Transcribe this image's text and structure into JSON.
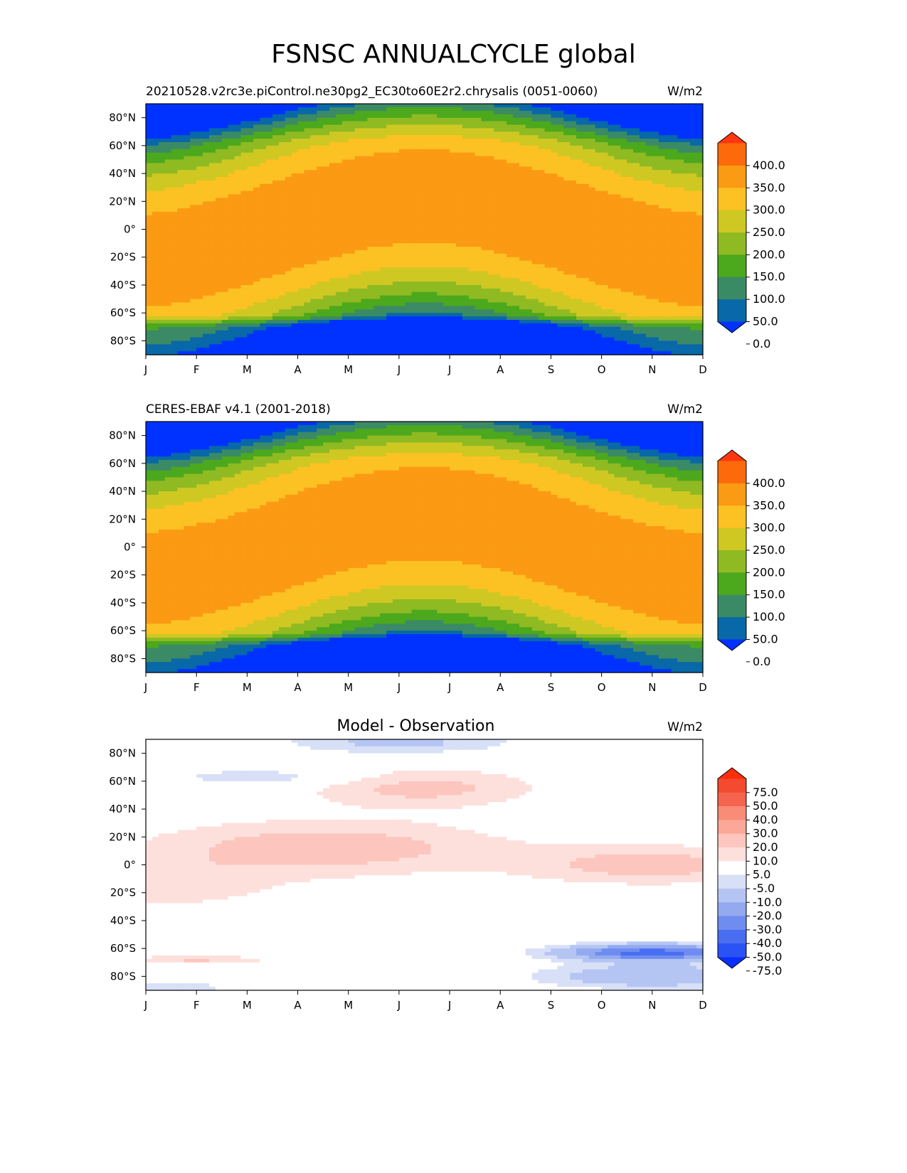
{
  "figure_title": "FSNSC ANNUALCYCLE global",
  "chart_data": [
    {
      "type": "heatmap",
      "panel": "test",
      "title_left": "20210528.v2rc3e.piControl.ne30pg2_EC30to60E2r2.chrysalis (0051-0060)",
      "title_center": "",
      "units": "W/m2",
      "x_tick_labels": [
        "J",
        "F",
        "M",
        "A",
        "M",
        "J",
        "J",
        "A",
        "S",
        "O",
        "N",
        "D"
      ],
      "y_tick_labels": [
        "80°N",
        "60°N",
        "40°N",
        "20°N",
        "0°",
        "20°S",
        "40°S",
        "60°S",
        "80°S"
      ],
      "y_tick_values": [
        80,
        60,
        40,
        20,
        0,
        -20,
        -40,
        -60,
        -80
      ],
      "xlim": [
        1,
        12
      ],
      "ylim": [
        -90,
        90
      ],
      "colorbar_labels": [
        "400.0",
        "350.0",
        "300.0",
        "250.0",
        "200.0",
        "150.0",
        "100.0",
        "50.0",
        "0.0"
      ],
      "colorbar_levels": [
        -50,
        0,
        50,
        100,
        150,
        200,
        250,
        300,
        350,
        400,
        450
      ],
      "colorbar_colors": [
        "#0032ff",
        "#0868a8",
        "#3b8a66",
        "#4ca81d",
        "#8fba22",
        "#cfc823",
        "#fcc123",
        "#fb9a13",
        "#fc6a0c",
        "#fe3710"
      ]
    },
    {
      "type": "heatmap",
      "panel": "reference",
      "title_left": "CERES-EBAF v4.1 (2001-2018)",
      "title_center": "",
      "units": "W/m2",
      "x_tick_labels": [
        "J",
        "F",
        "M",
        "A",
        "M",
        "J",
        "J",
        "A",
        "S",
        "O",
        "N",
        "D"
      ],
      "y_tick_labels": [
        "80°N",
        "60°N",
        "40°N",
        "20°N",
        "0°",
        "20°S",
        "40°S",
        "60°S",
        "80°S"
      ],
      "y_tick_values": [
        80,
        60,
        40,
        20,
        0,
        -20,
        -40,
        -60,
        -80
      ],
      "xlim": [
        1,
        12
      ],
      "ylim": [
        -90,
        90
      ],
      "colorbar_labels": [
        "400.0",
        "350.0",
        "300.0",
        "250.0",
        "200.0",
        "150.0",
        "100.0",
        "50.0",
        "0.0"
      ],
      "colorbar_levels": [
        -50,
        0,
        50,
        100,
        150,
        200,
        250,
        300,
        350,
        400,
        450
      ],
      "colorbar_colors": [
        "#0032ff",
        "#0868a8",
        "#3b8a66",
        "#4ca81d",
        "#8fba22",
        "#cfc823",
        "#fcc123",
        "#fb9a13",
        "#fc6a0c",
        "#fe3710"
      ]
    },
    {
      "type": "heatmap",
      "panel": "difference",
      "title_left": "",
      "title_center": "Model - Observation",
      "units": "W/m2",
      "x_tick_labels": [
        "J",
        "F",
        "M",
        "A",
        "M",
        "J",
        "J",
        "A",
        "S",
        "O",
        "N",
        "D"
      ],
      "y_tick_labels": [
        "80°N",
        "60°N",
        "40°N",
        "20°N",
        "0°",
        "20°S",
        "40°S",
        "60°S",
        "80°S"
      ],
      "y_tick_values": [
        80,
        60,
        40,
        20,
        0,
        -20,
        -40,
        -60,
        -80
      ],
      "xlim": [
        1,
        12
      ],
      "ylim": [
        -90,
        90
      ],
      "colorbar_labels": [
        "75.0",
        "50.0",
        "40.0",
        "30.0",
        "20.0",
        "10.0",
        "5.0",
        "-5.0",
        "-10.0",
        "-20.0",
        "-30.0",
        "-40.0",
        "-50.0",
        "-75.0"
      ],
      "colorbar_levels": [
        -100,
        -75,
        -50,
        -40,
        -30,
        -20,
        -10,
        -5,
        5,
        10,
        20,
        30,
        40,
        50,
        75,
        100
      ],
      "colorbar_colors": [
        "#0a2eff",
        "#2a52f5",
        "#4a6ef2",
        "#6f8df0",
        "#93aaf0",
        "#b5c5f3",
        "#d8e0f8",
        "#ffffff",
        "#fde0dc",
        "#fcc6be",
        "#fba898",
        "#f88c76",
        "#f5644e",
        "#f34a30",
        "#fd2e0c"
      ]
    }
  ]
}
